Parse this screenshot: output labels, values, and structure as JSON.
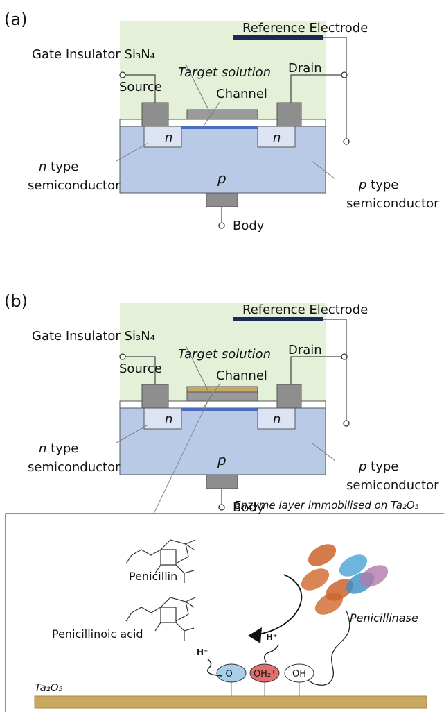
{
  "panel_a": {
    "label": "(a)",
    "reference_electrode": "Reference Electrode",
    "gate_insulator": "Gate Insulator Si₃N₄",
    "target_solution": "Target solution",
    "drain": "Drain",
    "source": "Source",
    "channel": "Channel",
    "n_left": "n",
    "n_right": "n",
    "p": "p",
    "n_type": {
      "italic": "n",
      "rest": " type",
      "line2": "semiconductor"
    },
    "p_type": {
      "italic": "p",
      "rest": " type",
      "line2": "semiconductor"
    },
    "body": "Body"
  },
  "panel_b": {
    "label": "(b)",
    "reference_electrode": "Reference Electrode",
    "gate_insulator": "Gate Insulator Si₃N₄",
    "target_solution": "Target solution",
    "drain": "Drain",
    "source": "Source",
    "channel": "Channel",
    "n_left": "n",
    "n_right": "n",
    "p": "p",
    "n_type": {
      "italic": "n",
      "rest": " type",
      "line2": "semiconductor"
    },
    "p_type": {
      "italic": "p",
      "rest": " type",
      "line2": "semiconductor"
    },
    "body": "Body"
  },
  "inset": {
    "enzyme_layer": "Enzyme layer immobilised on Ta₂O₅",
    "penicillin": "Penicillin",
    "penicillinoic_acid": "Penicillinoic acid",
    "penicillinase": "Penicillinase",
    "h_plus_left": "H⁺",
    "h_plus_right": "H⁺",
    "o_minus": "O⁻",
    "oh2_plus": "OH₂⁺",
    "oh": "OH",
    "substrate": "Ta₂O₅"
  }
}
